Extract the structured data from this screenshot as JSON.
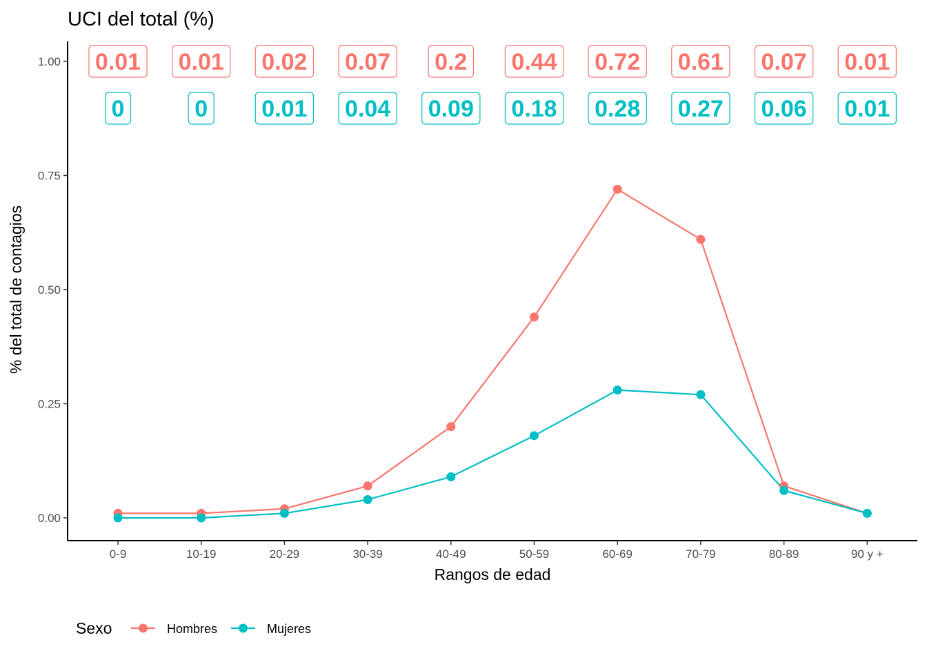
{
  "chart_data": {
    "type": "line",
    "title": "UCI del total (%)",
    "xlabel": "Rangos de edad",
    "ylabel": "% del total de contagios",
    "categories": [
      "0-9",
      "10-19",
      "20-29",
      "30-39",
      "40-49",
      "50-59",
      "60-69",
      "70-79",
      "80-89",
      "90 y +"
    ],
    "ylim": [
      -0.05,
      1.05
    ],
    "yticks": [
      0.0,
      0.25,
      0.5,
      0.75,
      1.0
    ],
    "ytick_labels": [
      "0.00",
      "0.25",
      "0.50",
      "0.75",
      "1.00"
    ],
    "grid": false,
    "legend": {
      "title": "Sexo",
      "position": "bottom-left"
    },
    "series": [
      {
        "name": "Hombres",
        "color": "#F8766D",
        "values": [
          0.01,
          0.01,
          0.02,
          0.07,
          0.2,
          0.44,
          0.72,
          0.61,
          0.07,
          0.01
        ],
        "labels": [
          "0.01",
          "0.01",
          "0.02",
          "0.07",
          "0.2",
          "0.44",
          "0.72",
          "0.61",
          "0.07",
          "0.01"
        ]
      },
      {
        "name": "Mujeres",
        "color": "#00BFC4",
        "values": [
          0.0,
          0.0,
          0.01,
          0.04,
          0.09,
          0.18,
          0.28,
          0.27,
          0.06,
          0.01
        ],
        "labels": [
          "0",
          "0",
          "0.01",
          "0.04",
          "0.09",
          "0.18",
          "0.28",
          "0.27",
          "0.06",
          "0.01"
        ]
      }
    ]
  }
}
